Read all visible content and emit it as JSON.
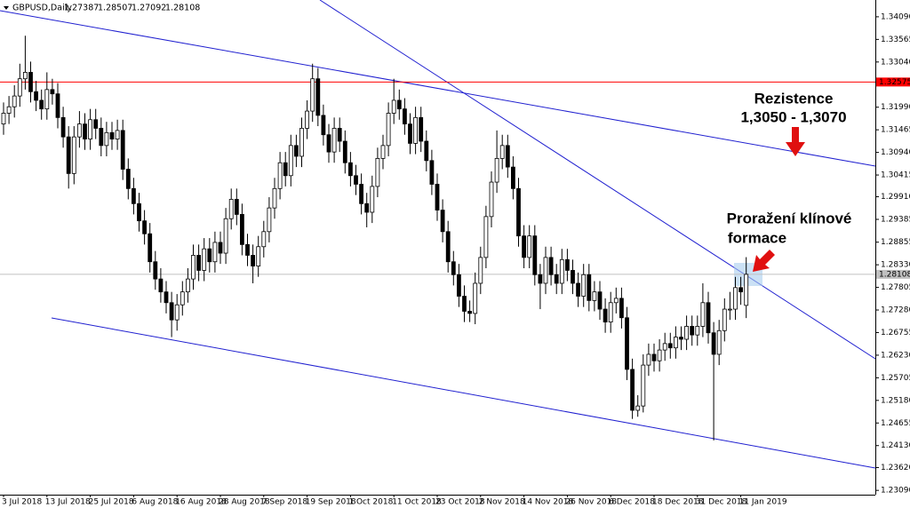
{
  "chart_data": {
    "type": "candlestick",
    "symbol": "GBPUSD,Daily",
    "annotations": [
      {
        "lines": [
          "Rezistence",
          "1,3050 - 1,3070"
        ]
      },
      {
        "lines": [
          "Proražení klínové",
          "formace"
        ]
      }
    ],
    "up_color": "#ffffff",
    "down_color": "#000000",
    "outline_color": "#000000",
    "ylim": [
      1.2299,
      1.3448
    ],
    "yticks": [
      {
        "value": 1.3409,
        "label": "1.34090"
      },
      1.33565,
      {
        "value": 1.3304,
        "label": "1.33040"
      },
      {
        "value": 1.3199,
        "label": "1.31990"
      },
      1.31465,
      {
        "value": 1.3094,
        "label": "1.30940"
      },
      1.30415,
      {
        "value": 1.2991,
        "label": "1.29910"
      },
      1.29385,
      1.28855,
      {
        "value": 1.2833,
        "label": "1.28330"
      },
      1.27805,
      {
        "value": 1.2728,
        "label": "1.27280"
      },
      1.26755,
      {
        "value": 1.2623,
        "label": "1.26230"
      },
      1.25705,
      {
        "value": 1.2518,
        "label": "1.25180"
      },
      1.24655,
      {
        "value": 1.2413,
        "label": "1.24130"
      },
      {
        "value": 1.2362,
        "label": "1.23620"
      },
      {
        "value": 1.2309,
        "label": "1.23090"
      }
    ],
    "hlines": [
      {
        "value": 1.32575,
        "color": "#ff0000"
      }
    ],
    "bid_line_color": "#c0c0c0",
    "categories": [
      "3 Jul 2018",
      null,
      null,
      null,
      null,
      null,
      null,
      null,
      "13 Jul 2018",
      null,
      null,
      null,
      null,
      null,
      null,
      null,
      "25 Jul 2018",
      null,
      null,
      null,
      null,
      null,
      null,
      null,
      "6 Aug 2018",
      null,
      null,
      null,
      null,
      null,
      null,
      null,
      "16 Aug 2018",
      null,
      null,
      null,
      null,
      null,
      null,
      null,
      "28 Aug 2018",
      null,
      null,
      null,
      null,
      null,
      null,
      null,
      "7 Sep 2018",
      null,
      null,
      null,
      null,
      null,
      null,
      null,
      "19 Sep 2018",
      null,
      null,
      null,
      null,
      null,
      null,
      null,
      "1 Oct 2018",
      null,
      null,
      null,
      null,
      null,
      null,
      null,
      "11 Oct 2018",
      null,
      null,
      null,
      null,
      null,
      null,
      null,
      "23 Oct 2018",
      null,
      null,
      null,
      null,
      null,
      null,
      null,
      "2 Nov 2018",
      null,
      null,
      null,
      null,
      null,
      null,
      null,
      "14 Nov 2018",
      null,
      null,
      null,
      null,
      null,
      null,
      null,
      "26 Nov 2018",
      null,
      null,
      null,
      null,
      null,
      null,
      null,
      "6 Dec 2018",
      null,
      null,
      null,
      null,
      null,
      null,
      null,
      "18 Dec 2018",
      null,
      null,
      null,
      null,
      null,
      null,
      null,
      "31 Dec 2018",
      null,
      null,
      null,
      null,
      null,
      null,
      null,
      "11 Jan 2019",
      null
    ],
    "open": [
      1.316,
      1.3185,
      1.32,
      1.3225,
      1.3265,
      1.328,
      1.3235,
      1.3215,
      1.3195,
      1.324,
      1.323,
      1.3175,
      1.313,
      1.3045,
      1.313,
      1.316,
      1.3125,
      1.317,
      1.315,
      1.311,
      1.314,
      1.3125,
      1.3145,
      1.3055,
      1.301,
      1.2975,
      1.2935,
      1.2905,
      1.284,
      1.28,
      1.277,
      1.2745,
      1.2705,
      1.274,
      1.277,
      1.28,
      1.2855,
      1.282,
      1.287,
      1.284,
      1.2885,
      1.286,
      1.294,
      1.2985,
      1.295,
      1.288,
      1.2855,
      1.283,
      1.2875,
      1.291,
      1.2965,
      1.301,
      1.307,
      1.304,
      1.311,
      1.3085,
      1.315,
      1.319,
      1.3265,
      1.318,
      1.3135,
      1.3095,
      1.315,
      1.312,
      1.307,
      1.304,
      1.302,
      1.2975,
      1.2955,
      1.3015,
      1.308,
      1.311,
      1.3185,
      1.3215,
      1.3195,
      1.316,
      1.3115,
      1.3175,
      1.312,
      1.3075,
      1.302,
      1.296,
      1.291,
      1.284,
      1.281,
      1.276,
      1.2725,
      1.272,
      1.279,
      1.285,
      1.2945,
      1.3025,
      1.308,
      1.311,
      1.306,
      1.301,
      1.29,
      1.285,
      1.29,
      1.281,
      1.279,
      1.285,
      1.281,
      1.279,
      1.2845,
      1.282,
      1.279,
      1.276,
      1.281,
      1.275,
      1.277,
      1.273,
      1.27,
      1.2745,
      1.2755,
      1.271,
      1.259,
      1.2495,
      1.2505,
      1.26,
      1.2625,
      1.261,
      1.2635,
      1.265,
      1.264,
      1.2665,
      1.266,
      1.269,
      1.267,
      1.269,
      1.2745,
      1.2675,
      1.2625,
      1.268,
      1.273,
      1.273,
      1.278,
      1.27387
    ],
    "high": [
      1.321,
      1.3225,
      1.325,
      1.33,
      1.3365,
      1.3305,
      1.326,
      1.324,
      1.328,
      1.3265,
      1.3255,
      1.32,
      1.3155,
      1.3155,
      1.319,
      1.3185,
      1.3195,
      1.3195,
      1.3175,
      1.3165,
      1.3165,
      1.317,
      1.317,
      1.308,
      1.3035,
      1.3,
      1.296,
      1.293,
      1.2865,
      1.2825,
      1.2795,
      1.277,
      1.2765,
      1.2795,
      1.2825,
      1.288,
      1.288,
      1.2895,
      1.2895,
      1.291,
      1.291,
      1.2965,
      1.301,
      1.301,
      1.2975,
      1.2905,
      1.288,
      1.29,
      1.2935,
      1.299,
      1.3035,
      1.3095,
      1.3095,
      1.3135,
      1.3135,
      1.3175,
      1.3215,
      1.33,
      1.329,
      1.3205,
      1.316,
      1.3175,
      1.3175,
      1.3145,
      1.3095,
      1.3065,
      1.3045,
      1.3,
      1.304,
      1.3105,
      1.3135,
      1.321,
      1.3265,
      1.324,
      1.322,
      1.3185,
      1.32,
      1.32,
      1.3145,
      1.31,
      1.3045,
      1.2985,
      1.2935,
      1.2865,
      1.2835,
      1.2785,
      1.275,
      1.2815,
      1.2875,
      1.297,
      1.305,
      1.3145,
      1.3135,
      1.3135,
      1.3085,
      1.3035,
      1.2925,
      1.2925,
      1.2925,
      1.2835,
      1.2875,
      1.2875,
      1.2835,
      1.287,
      1.287,
      1.2845,
      1.2815,
      1.2835,
      1.2835,
      1.2795,
      1.2795,
      1.2755,
      1.277,
      1.278,
      1.278,
      1.2735,
      1.2615,
      1.253,
      1.2625,
      1.265,
      1.265,
      1.266,
      1.2675,
      1.2675,
      1.269,
      1.269,
      1.2715,
      1.2715,
      1.2715,
      1.279,
      1.277,
      1.27,
      1.2705,
      1.2755,
      1.277,
      1.2805,
      1.2805,
      1.28507
    ],
    "low": [
      1.3135,
      1.316,
      1.3175,
      1.32,
      1.324,
      1.321,
      1.319,
      1.317,
      1.317,
      1.3205,
      1.315,
      1.3105,
      1.301,
      1.302,
      1.3105,
      1.31,
      1.31,
      1.3125,
      1.3085,
      1.3085,
      1.31,
      1.31,
      1.303,
      1.2985,
      1.295,
      1.291,
      1.288,
      1.2815,
      1.2775,
      1.2745,
      1.272,
      1.2665,
      1.268,
      1.2715,
      1.2745,
      1.2775,
      1.2795,
      1.2795,
      1.2815,
      1.2815,
      1.2835,
      1.2835,
      1.2915,
      1.2925,
      1.2855,
      1.283,
      1.279,
      1.2805,
      1.285,
      1.2885,
      1.294,
      1.2985,
      1.3015,
      1.3015,
      1.306,
      1.306,
      1.3125,
      1.3165,
      1.3155,
      1.311,
      1.307,
      1.307,
      1.3095,
      1.3045,
      1.3015,
      1.2995,
      1.295,
      1.292,
      1.293,
      1.299,
      1.3055,
      1.3085,
      1.316,
      1.317,
      1.3135,
      1.309,
      1.309,
      1.3095,
      1.305,
      1.2995,
      1.2935,
      1.2885,
      1.2815,
      1.2785,
      1.2735,
      1.27,
      1.27,
      1.2695,
      1.2765,
      1.2825,
      1.292,
      1.3,
      1.3055,
      1.3035,
      1.2985,
      1.2875,
      1.2825,
      1.2825,
      1.2785,
      1.273,
      1.2765,
      1.2785,
      1.2765,
      1.2765,
      1.2795,
      1.2765,
      1.2735,
      1.2735,
      1.2725,
      1.2725,
      1.2705,
      1.2675,
      1.2675,
      1.272,
      1.2685,
      1.2565,
      1.2475,
      1.248,
      1.249,
      1.2575,
      1.2585,
      1.2585,
      1.261,
      1.2615,
      1.2615,
      1.2635,
      1.2635,
      1.2645,
      1.2645,
      1.2665,
      1.265,
      1.2425,
      1.26,
      1.2655,
      1.2705,
      1.2705,
      1.274,
      1.27092
    ],
    "close": [
      1.3185,
      1.32,
      1.3225,
      1.3265,
      1.328,
      1.3235,
      1.3215,
      1.3195,
      1.324,
      1.323,
      1.3175,
      1.313,
      1.3045,
      1.313,
      1.316,
      1.3125,
      1.317,
      1.315,
      1.311,
      1.314,
      1.3125,
      1.3145,
      1.3055,
      1.301,
      1.2975,
      1.2935,
      1.2905,
      1.284,
      1.28,
      1.277,
      1.2745,
      1.2705,
      1.274,
      1.277,
      1.28,
      1.2855,
      1.282,
      1.287,
      1.284,
      1.2885,
      1.286,
      1.294,
      1.2985,
      1.295,
      1.288,
      1.2855,
      1.283,
      1.2875,
      1.291,
      1.2965,
      1.301,
      1.307,
      1.304,
      1.311,
      1.3085,
      1.315,
      1.319,
      1.3265,
      1.318,
      1.3135,
      1.3095,
      1.315,
      1.312,
      1.307,
      1.304,
      1.302,
      1.2975,
      1.2955,
      1.3015,
      1.308,
      1.311,
      1.3185,
      1.3215,
      1.3195,
      1.316,
      1.3115,
      1.3175,
      1.312,
      1.3075,
      1.302,
      1.296,
      1.291,
      1.284,
      1.281,
      1.276,
      1.2725,
      1.272,
      1.279,
      1.285,
      1.2945,
      1.3025,
      1.308,
      1.311,
      1.306,
      1.301,
      1.29,
      1.285,
      1.29,
      1.281,
      1.279,
      1.285,
      1.281,
      1.279,
      1.2845,
      1.282,
      1.279,
      1.276,
      1.281,
      1.275,
      1.277,
      1.273,
      1.27,
      1.2745,
      1.2755,
      1.271,
      1.259,
      1.2495,
      1.2505,
      1.26,
      1.2625,
      1.261,
      1.2635,
      1.265,
      1.264,
      1.2665,
      1.266,
      1.269,
      1.267,
      1.269,
      1.2745,
      1.2675,
      1.2625,
      1.268,
      1.273,
      1.273,
      1.278,
      1.277,
      1.28108
    ]
  }
}
